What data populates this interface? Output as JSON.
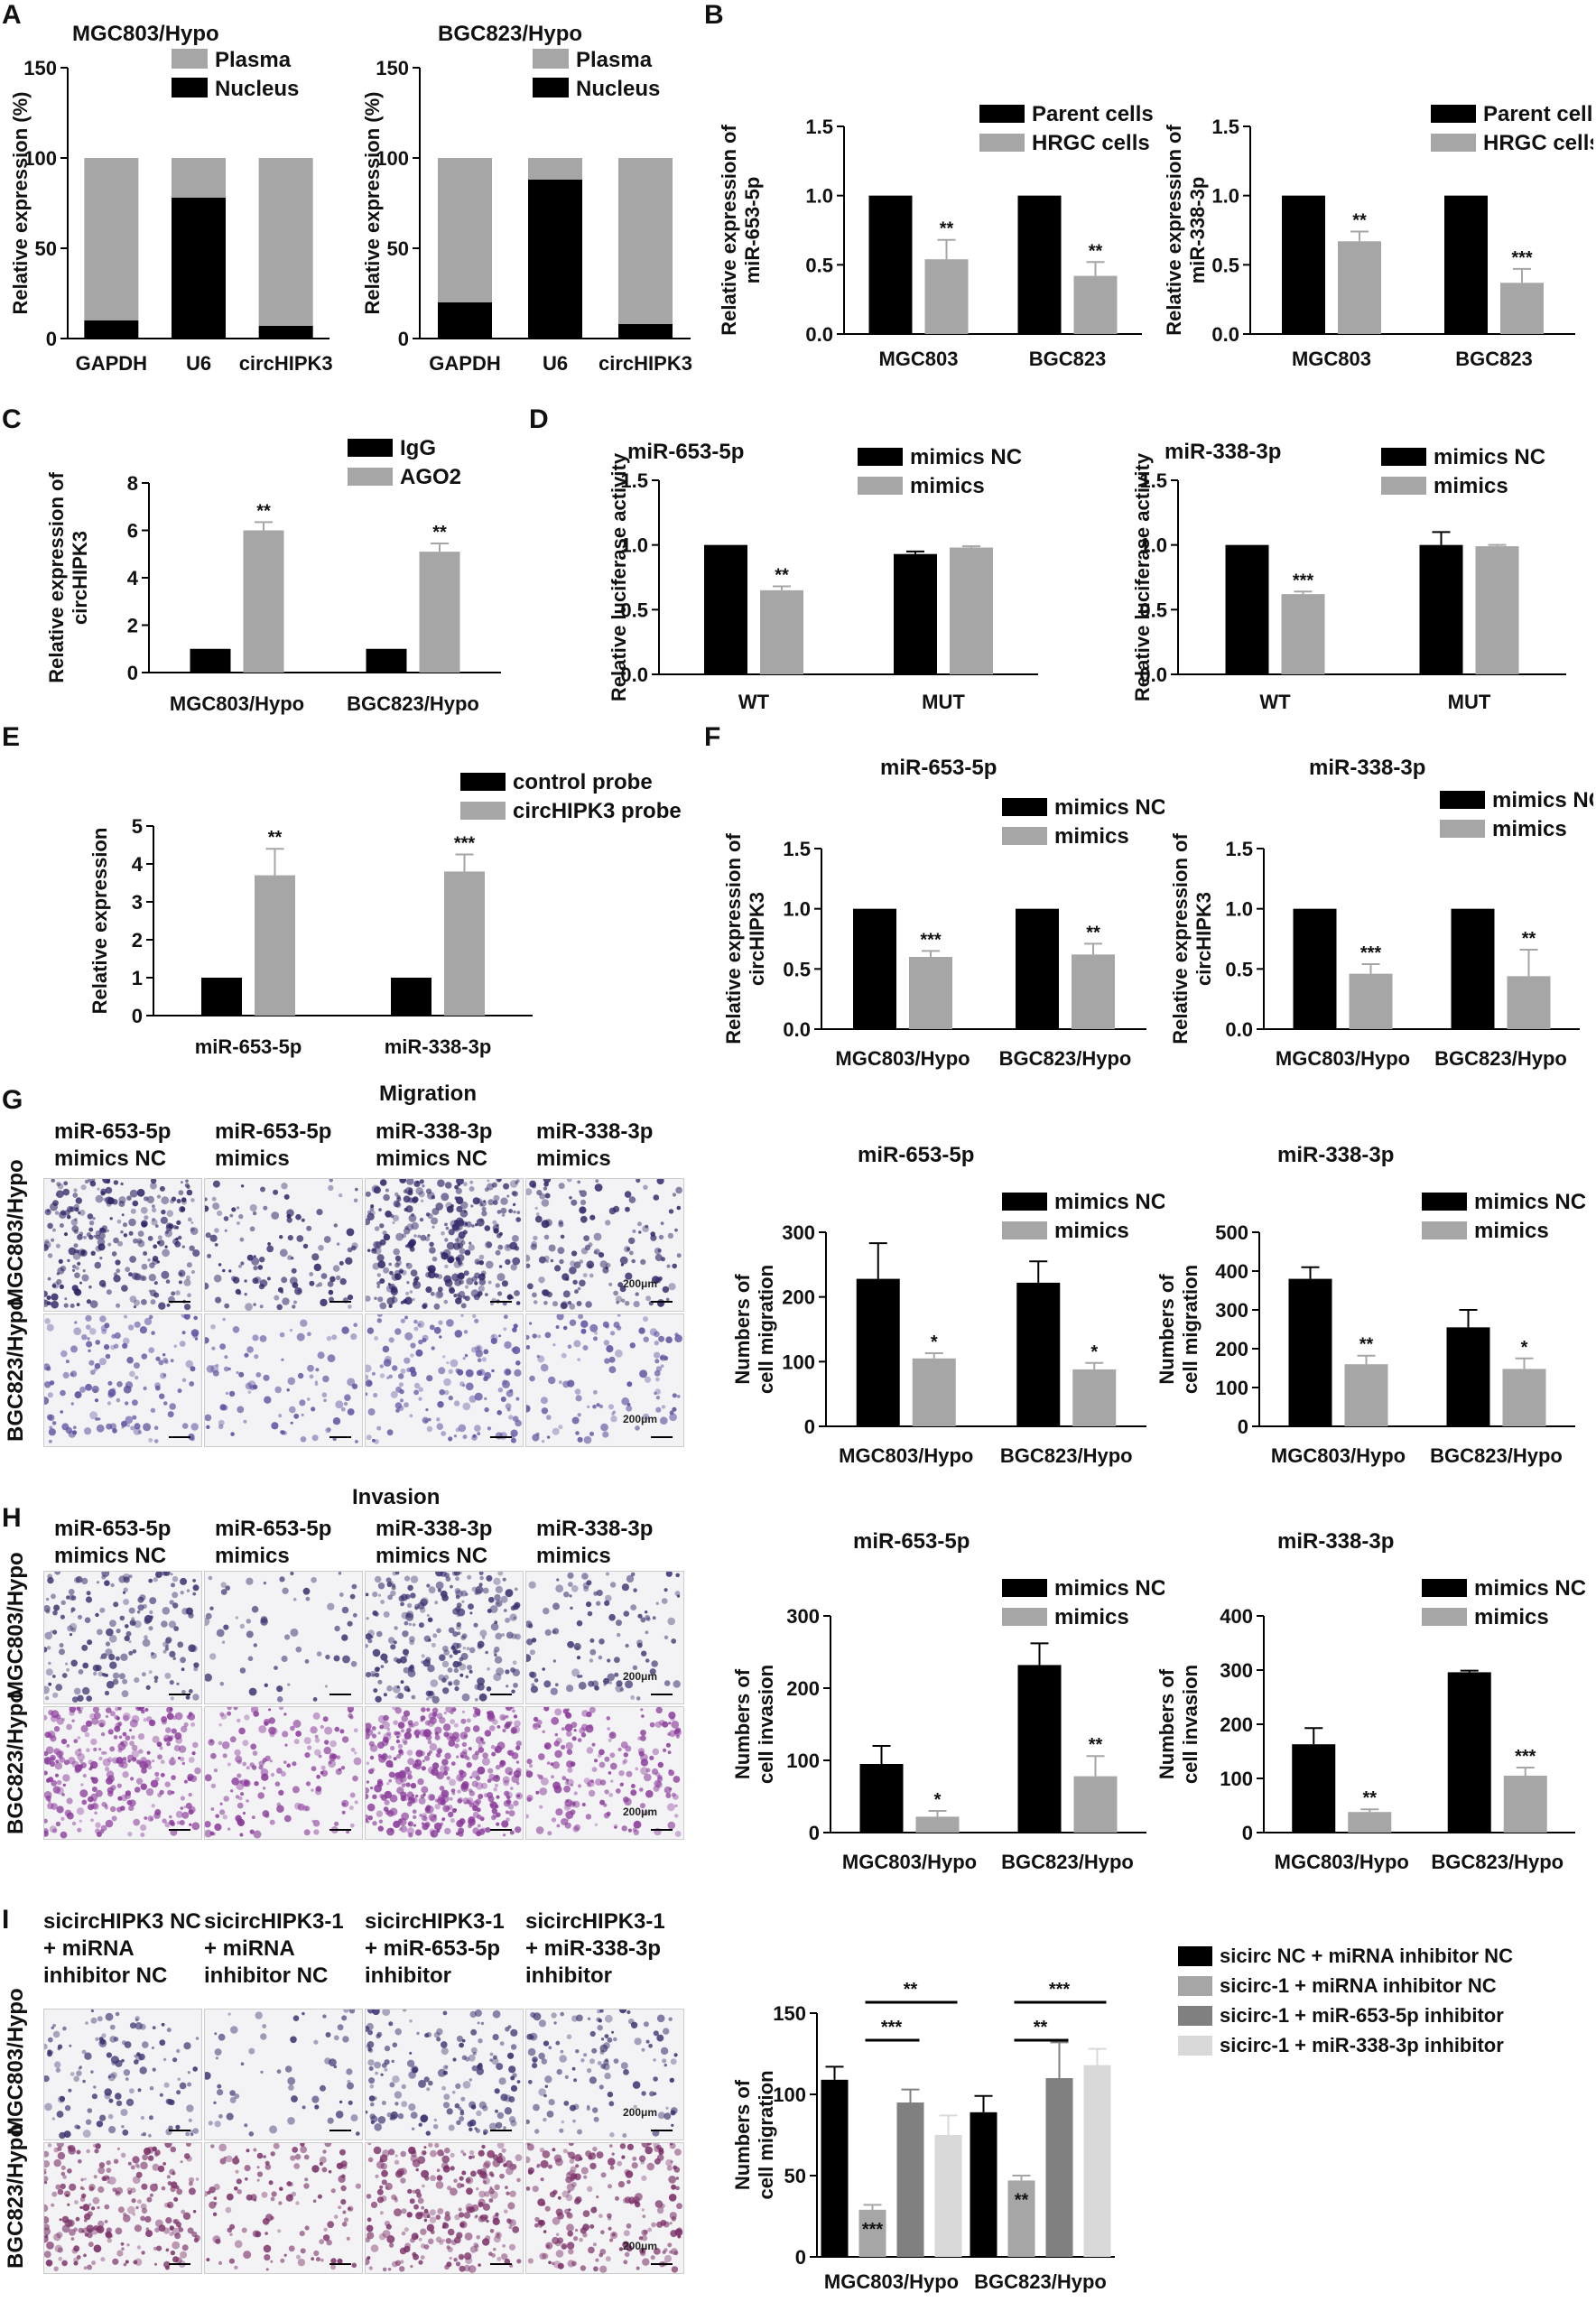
{
  "colors": {
    "black": "#000000",
    "gray": "#a6a6a6",
    "dark_gray": "#808080",
    "light_gray": "#d9d9d9"
  },
  "panel_labels": [
    "A",
    "B",
    "C",
    "D",
    "E",
    "F",
    "G",
    "H",
    "I"
  ],
  "sections": {
    "migration": "Migration",
    "invasion": "Invasion"
  },
  "panelG": {
    "columns": [
      [
        "miR-653-5p",
        "mimics NC"
      ],
      [
        "miR-653-5p",
        "mimics"
      ],
      [
        "miR-338-3p",
        "mimics NC"
      ],
      [
        "miR-338-3p",
        "mimics"
      ]
    ],
    "rows": [
      "MGC803/Hypo",
      "BGC823/Hypo"
    ],
    "scale": "200μm"
  },
  "panelH": {
    "columns": [
      [
        "miR-653-5p",
        "mimics NC"
      ],
      [
        "miR-653-5p",
        "mimics"
      ],
      [
        "miR-338-3p",
        "mimics NC"
      ],
      [
        "miR-338-3p",
        "mimics"
      ]
    ],
    "rows": [
      "MGC803/Hypo",
      "BGC823/Hypo"
    ],
    "scale": "200μm"
  },
  "panelI": {
    "columns": [
      [
        "sicircHIPK3 NC",
        "+ miRNA",
        "inhibitor NC"
      ],
      [
        "sicircHIPK3-1",
        "+ miRNA",
        "inhibitor NC"
      ],
      [
        "sicircHIPK3-1",
        "+ miR-653-5p",
        "inhibitor"
      ],
      [
        "sicircHIPK3-1",
        "+ miR-338-3p",
        "inhibitor"
      ]
    ],
    "rows": [
      "MGC803/Hypo",
      "BGC823/Hypo"
    ],
    "scale": "200μm"
  },
  "chart_data": [
    {
      "id": "A1",
      "type": "bar",
      "stacked": true,
      "title": "MGC803/Hypo",
      "ylabel": "Relative expression (%)",
      "categories": [
        "GAPDH",
        "U6",
        "circHIPK3"
      ],
      "ylim": [
        0,
        150
      ],
      "yticks": [
        0,
        50,
        100,
        150
      ],
      "legend": [
        "Plasma",
        "Nucleus"
      ],
      "series": [
        {
          "name": "Nucleus",
          "color": "#000000",
          "values": [
            10,
            78,
            7
          ]
        },
        {
          "name": "Plasma",
          "color": "#a6a6a6",
          "values": [
            90,
            22,
            93
          ]
        }
      ]
    },
    {
      "id": "A2",
      "type": "bar",
      "stacked": true,
      "title": "BGC823/Hypo",
      "ylabel": "Relative expression (%)",
      "categories": [
        "GAPDH",
        "U6",
        "circHIPK3"
      ],
      "ylim": [
        0,
        150
      ],
      "yticks": [
        0,
        50,
        100,
        150
      ],
      "legend": [
        "Plasma",
        "Nucleus"
      ],
      "series": [
        {
          "name": "Nucleus",
          "color": "#000000",
          "values": [
            20,
            88,
            8
          ]
        },
        {
          "name": "Plasma",
          "color": "#a6a6a6",
          "values": [
            80,
            12,
            92
          ]
        }
      ]
    },
    {
      "id": "B1",
      "type": "bar",
      "title": "",
      "ylabel": "Relative expression of miR-653-5p",
      "categories": [
        "MGC803",
        "BGC823"
      ],
      "ylim": [
        0,
        1.5
      ],
      "yticks": [
        "0.0",
        "0.5",
        "1.0",
        "1.5"
      ],
      "series": [
        {
          "name": "Parent cells",
          "color": "#000000",
          "values": [
            1.0,
            1.0
          ],
          "errors": [
            0,
            0
          ],
          "sig": [
            "",
            ""
          ]
        },
        {
          "name": "HRGC cells",
          "color": "#a6a6a6",
          "values": [
            0.54,
            0.42
          ],
          "errors": [
            0.14,
            0.1
          ],
          "sig": [
            "**",
            "**"
          ]
        }
      ]
    },
    {
      "id": "B2",
      "type": "bar",
      "title": "",
      "ylabel": "Relative expression of miR-338-3p",
      "categories": [
        "MGC803",
        "BGC823"
      ],
      "ylim": [
        0,
        1.5
      ],
      "yticks": [
        "0.0",
        "0.5",
        "1.0",
        "1.5"
      ],
      "series": [
        {
          "name": "Parent cells",
          "color": "#000000",
          "values": [
            1.0,
            1.0
          ],
          "errors": [
            0,
            0
          ],
          "sig": [
            "",
            ""
          ]
        },
        {
          "name": "HRGC cells",
          "color": "#a6a6a6",
          "values": [
            0.67,
            0.37
          ],
          "errors": [
            0.07,
            0.1
          ],
          "sig": [
            "**",
            "***"
          ]
        }
      ]
    },
    {
      "id": "C",
      "type": "bar",
      "title": "",
      "ylabel": "Relative expression of circHIPK3",
      "categories": [
        "MGC803/Hypo",
        "BGC823/Hypo"
      ],
      "ylim": [
        0,
        8
      ],
      "yticks": [
        "0",
        "2",
        "4",
        "6",
        "8"
      ],
      "series": [
        {
          "name": "IgG",
          "color": "#000000",
          "values": [
            1.0,
            1.0
          ],
          "errors": [
            0,
            0
          ],
          "sig": [
            "",
            ""
          ]
        },
        {
          "name": "AGO2",
          "color": "#a6a6a6",
          "values": [
            6.0,
            5.1
          ],
          "errors": [
            0.35,
            0.35
          ],
          "sig": [
            "**",
            "**"
          ]
        }
      ]
    },
    {
      "id": "D1",
      "type": "bar",
      "title": "miR-653-5p",
      "ylabel": "Relative luciferase activity",
      "categories": [
        "WT",
        "MUT"
      ],
      "ylim": [
        0,
        1.5
      ],
      "yticks": [
        "0.0",
        "0.5",
        "1.0",
        "1.5"
      ],
      "series": [
        {
          "name": "mimics NC",
          "color": "#000000",
          "values": [
            1.0,
            0.93
          ],
          "errors": [
            0,
            0.02
          ],
          "sig": [
            "",
            ""
          ]
        },
        {
          "name": "mimics",
          "color": "#a6a6a6",
          "values": [
            0.65,
            0.98
          ],
          "errors": [
            0.03,
            0.01
          ],
          "sig": [
            "**",
            ""
          ]
        }
      ]
    },
    {
      "id": "D2",
      "type": "bar",
      "title": "miR-338-3p",
      "ylabel": "Relative luciferase activity",
      "categories": [
        "WT",
        "MUT"
      ],
      "ylim": [
        0,
        1.5
      ],
      "yticks": [
        "0.0",
        "0.5",
        "1.0",
        "1.5"
      ],
      "series": [
        {
          "name": "mimics NC",
          "color": "#000000",
          "values": [
            1.0,
            1.0
          ],
          "errors": [
            0,
            0.1
          ],
          "sig": [
            "",
            ""
          ]
        },
        {
          "name": "mimics",
          "color": "#a6a6a6",
          "values": [
            0.62,
            0.99
          ],
          "errors": [
            0.02,
            0.01
          ],
          "sig": [
            "***",
            ""
          ]
        }
      ]
    },
    {
      "id": "E",
      "type": "bar",
      "title": "",
      "ylabel": "Relative expression",
      "categories": [
        "miR-653-5p",
        "miR-338-3p"
      ],
      "ylim": [
        0,
        5
      ],
      "yticks": [
        "0",
        "1",
        "2",
        "3",
        "4",
        "5"
      ],
      "series": [
        {
          "name": "control probe",
          "color": "#000000",
          "values": [
            1.0,
            1.0
          ],
          "errors": [
            0,
            0
          ],
          "sig": [
            "",
            ""
          ]
        },
        {
          "name": "circHIPK3 probe",
          "color": "#a6a6a6",
          "values": [
            3.7,
            3.8
          ],
          "errors": [
            0.7,
            0.45
          ],
          "sig": [
            "**",
            "***"
          ]
        }
      ]
    },
    {
      "id": "F1",
      "type": "bar",
      "title": "miR-653-5p",
      "ylabel": "Relative expression of circHIPK3",
      "categories": [
        "MGC803/Hypo",
        "BGC823/Hypo"
      ],
      "ylim": [
        0,
        1.5
      ],
      "yticks": [
        "0.0",
        "0.5",
        "1.0",
        "1.5"
      ],
      "series": [
        {
          "name": "mimics NC",
          "color": "#000000",
          "values": [
            1.0,
            1.0
          ],
          "errors": [
            0,
            0
          ],
          "sig": [
            "",
            ""
          ]
        },
        {
          "name": "mimics",
          "color": "#a6a6a6",
          "values": [
            0.6,
            0.62
          ],
          "errors": [
            0.05,
            0.09
          ],
          "sig": [
            "***",
            "**"
          ]
        }
      ]
    },
    {
      "id": "F2",
      "type": "bar",
      "title": "miR-338-3p",
      "ylabel": "Relative expression of circHIPK3",
      "categories": [
        "MGC803/Hypo",
        "BGC823/Hypo"
      ],
      "ylim": [
        0,
        1.5
      ],
      "yticks": [
        "0.0",
        "0.5",
        "1.0",
        "1.5"
      ],
      "series": [
        {
          "name": "mimics NC",
          "color": "#000000",
          "values": [
            1.0,
            1.0
          ],
          "errors": [
            0,
            0
          ],
          "sig": [
            "",
            ""
          ]
        },
        {
          "name": "mimics",
          "color": "#a6a6a6",
          "values": [
            0.46,
            0.44
          ],
          "errors": [
            0.08,
            0.22
          ],
          "sig": [
            "***",
            "**"
          ]
        }
      ]
    },
    {
      "id": "G1",
      "type": "bar",
      "title": "miR-653-5p",
      "ylabel": "Numbers of cell migration",
      "categories": [
        "MGC803/Hypo",
        "BGC823/Hypo"
      ],
      "ylim": [
        0,
        300
      ],
      "yticks": [
        "0",
        "100",
        "200",
        "300"
      ],
      "series": [
        {
          "name": "mimics NC",
          "color": "#000000",
          "values": [
            228,
            222
          ],
          "errors": [
            55,
            33
          ],
          "sig": [
            "",
            ""
          ]
        },
        {
          "name": "mimics",
          "color": "#a6a6a6",
          "values": [
            105,
            88
          ],
          "errors": [
            8,
            10
          ],
          "sig": [
            "*",
            "*"
          ]
        }
      ]
    },
    {
      "id": "G2",
      "type": "bar",
      "title": "miR-338-3p",
      "ylabel": "Numbers of cell migration",
      "categories": [
        "MGC803/Hypo",
        "BGC823/Hypo"
      ],
      "ylim": [
        0,
        500
      ],
      "yticks": [
        "0",
        "100",
        "200",
        "300",
        "400",
        "500"
      ],
      "series": [
        {
          "name": "mimics NC",
          "color": "#000000",
          "values": [
            380,
            255
          ],
          "errors": [
            30,
            45
          ],
          "sig": [
            "",
            ""
          ]
        },
        {
          "name": "mimics",
          "color": "#a6a6a6",
          "values": [
            160,
            148
          ],
          "errors": [
            22,
            27
          ],
          "sig": [
            "**",
            "*"
          ]
        }
      ]
    },
    {
      "id": "H1",
      "type": "bar",
      "title": "miR-653-5p",
      "ylabel": "Numbers of cell invasion",
      "categories": [
        "MGC803/Hypo",
        "BGC823/Hypo"
      ],
      "ylim": [
        0,
        300
      ],
      "yticks": [
        "0",
        "100",
        "200",
        "300"
      ],
      "series": [
        {
          "name": "mimics NC",
          "color": "#000000",
          "values": [
            95,
            232
          ],
          "errors": [
            25,
            30
          ],
          "sig": [
            "",
            ""
          ]
        },
        {
          "name": "mimics",
          "color": "#a6a6a6",
          "values": [
            22,
            78
          ],
          "errors": [
            8,
            28
          ],
          "sig": [
            "*",
            "**"
          ]
        }
      ]
    },
    {
      "id": "H2",
      "type": "bar",
      "title": "miR-338-3p",
      "ylabel": "Numbers of cell invasion",
      "categories": [
        "MGC803/Hypo",
        "BGC823/Hypo"
      ],
      "ylim": [
        0,
        400
      ],
      "yticks": [
        "0",
        "100",
        "200",
        "300",
        "400"
      ],
      "series": [
        {
          "name": "mimics NC",
          "color": "#000000",
          "values": [
            163,
            296
          ],
          "errors": [
            30,
            3
          ],
          "sig": [
            "",
            ""
          ]
        },
        {
          "name": "mimics",
          "color": "#a6a6a6",
          "values": [
            38,
            105
          ],
          "errors": [
            5,
            15
          ],
          "sig": [
            "**",
            "***"
          ]
        }
      ]
    },
    {
      "id": "I",
      "type": "bar",
      "title": "",
      "ylabel": "Numbers of cell migration",
      "categories": [
        "MGC803/Hypo",
        "BGC823/Hypo"
      ],
      "ylim": [
        0,
        150
      ],
      "yticks": [
        "0",
        "50",
        "100",
        "150"
      ],
      "series": [
        {
          "name": "sicirc NC + miRNA inhibitor NC",
          "color": "#000000",
          "values": [
            109,
            89
          ],
          "errors": [
            8,
            10
          ],
          "sig": [
            "",
            ""
          ]
        },
        {
          "name": "sicirc-1    + miRNA inhibitor NC",
          "color": "#a6a6a6",
          "values": [
            29,
            47
          ],
          "errors": [
            3,
            3
          ],
          "sig": [
            "***",
            "**"
          ]
        },
        {
          "name": "sicirc-1    + miR-653-5p inhibitor",
          "color": "#808080",
          "values": [
            95,
            110
          ],
          "errors": [
            8,
            22
          ],
          "sig": [
            "",
            ""
          ]
        },
        {
          "name": "sicirc-1    + miR-338-3p inhibitor",
          "color": "#d9d9d9",
          "values": [
            75,
            118
          ],
          "errors": [
            12,
            10
          ],
          "sig": [
            "",
            ""
          ]
        }
      ],
      "brackets": [
        {
          "group": 0,
          "from": 1,
          "to": 2,
          "label": "***",
          "level": 0
        },
        {
          "group": 0,
          "from": 1,
          "to": 3,
          "label": "**",
          "level": 1
        },
        {
          "group": 1,
          "from": 1,
          "to": 2,
          "label": "**",
          "level": 0
        },
        {
          "group": 1,
          "from": 1,
          "to": 3,
          "label": "***",
          "level": 1
        }
      ]
    }
  ]
}
